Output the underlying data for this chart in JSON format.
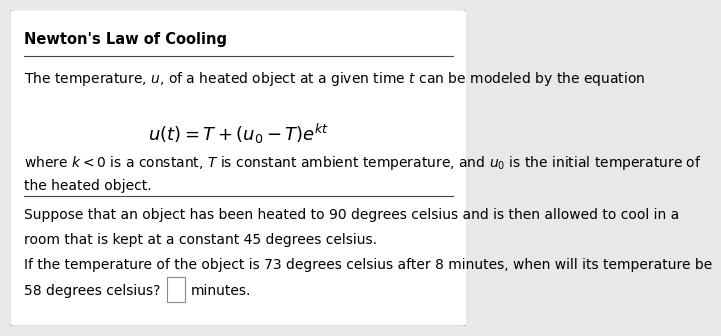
{
  "title": "Newton's Law of Cooling",
  "bg_color": "#e8e8e8",
  "box_color": "#ffffff",
  "text_color": "#000000",
  "line1": "The temperature, $u$, of a heated object at a given time $t$ can be modeled by the equation",
  "equation": "$u(t) = T + (u_0 - T)e^{kt}$",
  "line2_part1": "where $k < 0$ is a constant, $T$ is constant ambient temperature, and $u_0$ is the initial temperature of",
  "line2_part2": "the heated object.",
  "line3_part1": "Suppose that an object has been heated to 90 degrees celsius and is then allowed to cool in a",
  "line3_part2": "room that is kept at a constant 45 degrees celsius.",
  "line4_part1": "If the temperature of the object is 73 degrees celsius after 8 minutes, when will its temperature be",
  "line4_part2": "58 degrees celsius?",
  "line4_end": "minutes.",
  "font_size_title": 10.5,
  "font_size_body": 10,
  "font_size_eq": 13,
  "line_color": "#444444",
  "line_lw": 0.8,
  "box_edge_color": "#aaaaaa",
  "input_box_edge_color": "#888888"
}
